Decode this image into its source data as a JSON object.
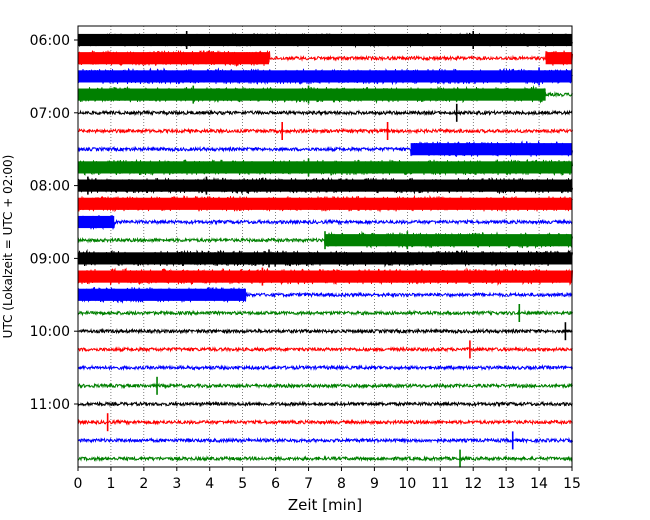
{
  "chart_data": {
    "type": "line",
    "subtype": "helicorder",
    "xlabel": "Zeit  [min]",
    "ylabel": "UTC (Lokalzeit = UTC + 02:00)",
    "xlim": [
      0,
      15
    ],
    "x_ticks": [
      0,
      1,
      2,
      3,
      4,
      5,
      6,
      7,
      8,
      9,
      10,
      11,
      12,
      13,
      14,
      15
    ],
    "y_ticks": [
      "06:00",
      "07:00",
      "08:00",
      "09:00",
      "10:00",
      "11:00"
    ],
    "grid": "vertical-dotted",
    "trace_interval_min": 15,
    "trace_colors": [
      "#000000",
      "#ff0000",
      "#0000ff",
      "#008000"
    ],
    "traces": [
      {
        "start": "06:00",
        "color": "#000000",
        "amplitude": 0.85,
        "loud": [
          [
            0,
            15
          ]
        ],
        "spikes": [
          3.3,
          12.0
        ]
      },
      {
        "start": "06:15",
        "color": "#ff0000",
        "amplitude": 0.12,
        "loud": [
          [
            0,
            5.8
          ],
          [
            14.2,
            15
          ]
        ],
        "spikes": []
      },
      {
        "start": "06:30",
        "color": "#0000ff",
        "amplitude": 0.12,
        "loud": [
          [
            0,
            15
          ]
        ],
        "spikes": [
          14.0
        ]
      },
      {
        "start": "06:45",
        "color": "#008000",
        "amplitude": 0.12,
        "loud": [
          [
            0,
            14.2
          ]
        ],
        "spikes": [
          3.5,
          7.0
        ]
      },
      {
        "start": "07:00",
        "color": "#000000",
        "amplitude": 0.12,
        "loud": [],
        "spikes": [
          11.5
        ]
      },
      {
        "start": "07:15",
        "color": "#ff0000",
        "amplitude": 0.12,
        "loud": [],
        "spikes": [
          6.2,
          9.4
        ]
      },
      {
        "start": "07:30",
        "color": "#0000ff",
        "amplitude": 0.12,
        "loud": [
          [
            10.1,
            15
          ]
        ],
        "spikes": []
      },
      {
        "start": "07:45",
        "color": "#008000",
        "amplitude": 0.12,
        "loud": [
          [
            0,
            15
          ]
        ],
        "spikes": [
          7.0
        ]
      },
      {
        "start": "08:00",
        "color": "#000000",
        "amplitude": 0.12,
        "loud": [
          [
            0,
            15
          ]
        ],
        "spikes": [
          0.3,
          3.9
        ]
      },
      {
        "start": "08:15",
        "color": "#ff0000",
        "amplitude": 0.12,
        "loud": [
          [
            0,
            15
          ]
        ],
        "spikes": []
      },
      {
        "start": "08:30",
        "color": "#0000ff",
        "amplitude": 0.12,
        "loud": [
          [
            0,
            1.1
          ]
        ],
        "spikes": []
      },
      {
        "start": "08:45",
        "color": "#008000",
        "amplitude": 0.12,
        "loud": [
          [
            7.5,
            15
          ]
        ],
        "spikes": [
          7.5,
          10.0
        ]
      },
      {
        "start": "09:00",
        "color": "#000000",
        "amplitude": 0.12,
        "loud": [
          [
            0,
            15
          ]
        ],
        "spikes": [
          5.8
        ]
      },
      {
        "start": "09:15",
        "color": "#ff0000",
        "amplitude": 0.12,
        "loud": [
          [
            0,
            15
          ]
        ],
        "spikes": [
          5.6
        ]
      },
      {
        "start": "09:30",
        "color": "#0000ff",
        "amplitude": 0.12,
        "loud": [
          [
            0,
            5.1
          ]
        ],
        "spikes": []
      },
      {
        "start": "09:45",
        "color": "#008000",
        "amplitude": 0.12,
        "loud": [],
        "spikes": [
          13.4
        ]
      },
      {
        "start": "10:00",
        "color": "#000000",
        "amplitude": 0.12,
        "loud": [],
        "spikes": [
          14.8
        ]
      },
      {
        "start": "10:15",
        "color": "#ff0000",
        "amplitude": 0.12,
        "loud": [],
        "spikes": [
          11.9
        ]
      },
      {
        "start": "10:30",
        "color": "#0000ff",
        "amplitude": 0.12,
        "loud": [],
        "spikes": []
      },
      {
        "start": "10:45",
        "color": "#008000",
        "amplitude": 0.12,
        "loud": [],
        "spikes": [
          2.4
        ]
      },
      {
        "start": "11:00",
        "color": "#000000",
        "amplitude": 0.12,
        "loud": [],
        "spikes": []
      },
      {
        "start": "11:15",
        "color": "#ff0000",
        "amplitude": 0.12,
        "loud": [],
        "spikes": [
          0.9
        ]
      },
      {
        "start": "11:30",
        "color": "#0000ff",
        "amplitude": 0.12,
        "loud": [],
        "spikes": [
          13.2
        ]
      },
      {
        "start": "11:45",
        "color": "#008000",
        "amplitude": 0.12,
        "loud": [],
        "spikes": [
          11.6
        ]
      }
    ]
  }
}
